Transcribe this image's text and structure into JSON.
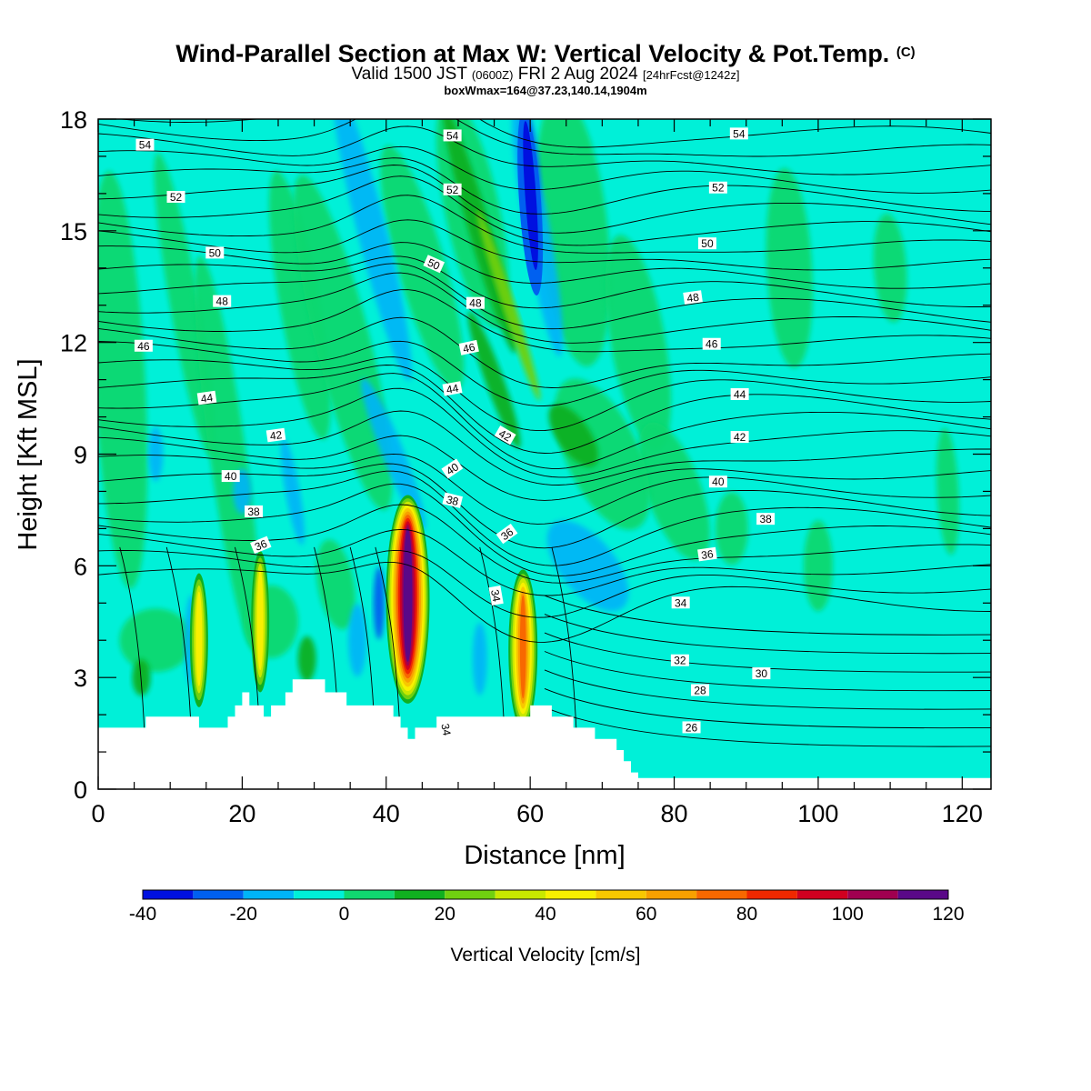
{
  "title": {
    "main": "Wind-Parallel Section at Max W: Vertical Velocity & Pot.Temp.",
    "copyright": "(C)",
    "valid_prefix": "Valid 1500 JST",
    "valid_utc": "(0600Z)",
    "valid_date": "FRI 2 Aug 2024",
    "forecast": "[24hrFcst@1242z]",
    "box": "boxWmax=164@37.23,140.14,1904m"
  },
  "chart_data": {
    "type": "heatmap",
    "xlabel": "Distance [nm]",
    "ylabel": "Height [Kft MSL]",
    "xlim": [
      0,
      124
    ],
    "ylim": [
      0,
      18
    ],
    "xticks": [
      0,
      20,
      40,
      60,
      80,
      100,
      120
    ],
    "yticks": [
      0,
      3,
      6,
      9,
      12,
      15,
      18
    ],
    "colorbar": {
      "label": "Vertical Velocity [cm/s]",
      "levels": [
        -40,
        -30,
        -20,
        -10,
        0,
        10,
        20,
        30,
        40,
        50,
        60,
        70,
        80,
        90,
        100,
        110,
        120
      ],
      "tick_labels": [
        "-40",
        "-20",
        "0",
        "20",
        "40",
        "60",
        "80",
        "100",
        "120"
      ],
      "colors": [
        "#0010e0",
        "#0060f0",
        "#00b4f8",
        "#00f0d8",
        "#10d870",
        "#10b020",
        "#70d010",
        "#c8e800",
        "#f8f000",
        "#f8c800",
        "#f8a000",
        "#f86800",
        "#f02800",
        "#d00020",
        "#a00050",
        "#5a0888"
      ]
    },
    "background_velocity_bin": "0 to 10",
    "updraft_cores": [
      {
        "distance": 14,
        "height_top": 5.8,
        "height_bottom": 2.2,
        "max_velocity": 40
      },
      {
        "distance": 22.5,
        "height_top": 6.4,
        "height_bottom": 2.6,
        "max_velocity": 40
      },
      {
        "distance": 43,
        "height_top": 7.9,
        "height_bottom": 2.3,
        "max_velocity": 120
      },
      {
        "distance": 59,
        "height_top": 5.9,
        "height_bottom": 1.6,
        "max_velocity": 70
      }
    ],
    "downdraft_core": {
      "distance": 60,
      "height_top": 18,
      "height_bottom": 13.5,
      "min_velocity": -40
    },
    "terrain_height_profile": {
      "distance": [
        0,
        6.6,
        6.6,
        14,
        14,
        18,
        18,
        19,
        19,
        20,
        20,
        21,
        21,
        23,
        23,
        24,
        24,
        26,
        26,
        27,
        27,
        31.5,
        31.5,
        34.5,
        34.5,
        41,
        41,
        42,
        42,
        43,
        43,
        44,
        44,
        47,
        47,
        60,
        60,
        63,
        63,
        66,
        66,
        69,
        69,
        72,
        72,
        73,
        73,
        74,
        74,
        75,
        75,
        77,
        77,
        124
      ],
      "height": [
        1.65,
        1.65,
        1.95,
        1.95,
        1.65,
        1.65,
        1.95,
        1.95,
        2.25,
        2.25,
        2.6,
        2.6,
        2.25,
        2.25,
        1.95,
        1.95,
        2.25,
        2.25,
        2.6,
        2.6,
        2.95,
        2.95,
        2.6,
        2.6,
        2.25,
        2.25,
        1.95,
        1.95,
        1.65,
        1.65,
        1.35,
        1.35,
        1.65,
        1.65,
        1.95,
        1.95,
        2.25,
        2.25,
        1.95,
        1.95,
        1.65,
        1.65,
        1.35,
        1.35,
        1.05,
        1.05,
        0.75,
        0.75,
        0.45,
        0.45,
        0.3,
        0.3,
        0.3,
        0.3
      ]
    },
    "isentrope_labels": [
      {
        "text": "54",
        "x": 6.5,
        "y": 17.3,
        "rot": 0
      },
      {
        "text": "52",
        "x": 10.8,
        "y": 15.9,
        "rot": 0
      },
      {
        "text": "50",
        "x": 16.2,
        "y": 14.4,
        "rot": 0
      },
      {
        "text": "48",
        "x": 17.2,
        "y": 13.1,
        "rot": 0
      },
      {
        "text": "46",
        "x": 6.3,
        "y": 11.9,
        "rot": 0
      },
      {
        "text": "44",
        "x": 15.1,
        "y": 10.5,
        "rot": -8
      },
      {
        "text": "42",
        "x": 24.7,
        "y": 9.5,
        "rot": -8
      },
      {
        "text": "40",
        "x": 18.4,
        "y": 8.4,
        "rot": 0
      },
      {
        "text": "38",
        "x": 21.6,
        "y": 7.45,
        "rot": 0
      },
      {
        "text": "36",
        "x": 22.6,
        "y": 6.55,
        "rot": -22
      },
      {
        "text": "54",
        "x": 49.2,
        "y": 17.55,
        "rot": 0
      },
      {
        "text": "52",
        "x": 49.2,
        "y": 16.1,
        "rot": 0
      },
      {
        "text": "50",
        "x": 46.6,
        "y": 14.1,
        "rot": 24
      },
      {
        "text": "48",
        "x": 52.4,
        "y": 13.05,
        "rot": 0
      },
      {
        "text": "46",
        "x": 51.5,
        "y": 11.85,
        "rot": -12
      },
      {
        "text": "44",
        "x": 49.2,
        "y": 10.75,
        "rot": -10
      },
      {
        "text": "42",
        "x": 56.5,
        "y": 9.5,
        "rot": 30
      },
      {
        "text": "40",
        "x": 49.2,
        "y": 8.6,
        "rot": -34
      },
      {
        "text": "38",
        "x": 49.2,
        "y": 7.75,
        "rot": 14
      },
      {
        "text": "36",
        "x": 56.8,
        "y": 6.85,
        "rot": -36
      },
      {
        "text": "34",
        "x": 55.2,
        "y": 5.2,
        "rot": 80
      },
      {
        "text": "34",
        "x": 48.3,
        "y": 1.6,
        "rot": 80
      },
      {
        "text": "54",
        "x": 89.0,
        "y": 17.6,
        "rot": 0
      },
      {
        "text": "52",
        "x": 86.1,
        "y": 16.15,
        "rot": 0
      },
      {
        "text": "50",
        "x": 84.6,
        "y": 14.65,
        "rot": 0
      },
      {
        "text": "48",
        "x": 82.6,
        "y": 13.2,
        "rot": -8
      },
      {
        "text": "46",
        "x": 85.2,
        "y": 11.95,
        "rot": 0
      },
      {
        "text": "44",
        "x": 89.1,
        "y": 10.6,
        "rot": 0
      },
      {
        "text": "42",
        "x": 89.1,
        "y": 9.45,
        "rot": 0
      },
      {
        "text": "40",
        "x": 86.1,
        "y": 8.25,
        "rot": 0
      },
      {
        "text": "38",
        "x": 92.7,
        "y": 7.25,
        "rot": 0
      },
      {
        "text": "36",
        "x": 84.6,
        "y": 6.3,
        "rot": -8
      },
      {
        "text": "34",
        "x": 80.9,
        "y": 5.0,
        "rot": 0
      },
      {
        "text": "32",
        "x": 80.8,
        "y": 3.45,
        "rot": 0
      },
      {
        "text": "30",
        "x": 92.1,
        "y": 3.1,
        "rot": 0
      },
      {
        "text": "28",
        "x": 83.6,
        "y": 2.65,
        "rot": 0
      },
      {
        "text": "26",
        "x": 82.4,
        "y": 1.65,
        "rot": 0
      }
    ]
  }
}
